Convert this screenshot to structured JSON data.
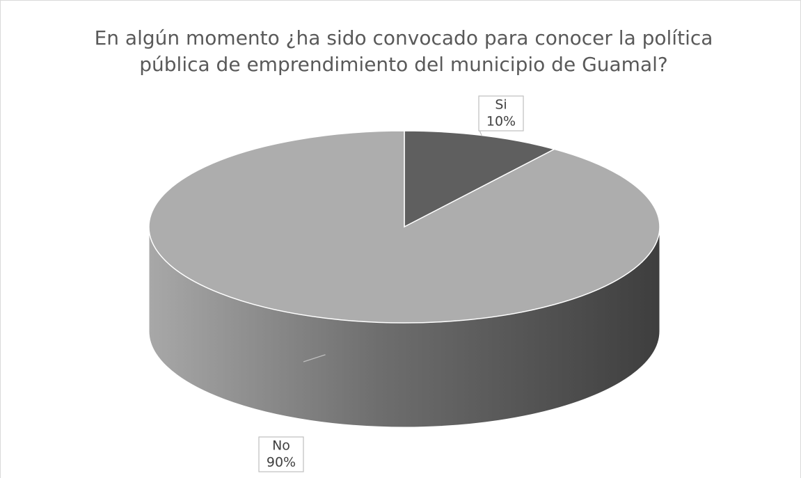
{
  "chart_data": {
    "type": "pie",
    "title": "En algún momento ¿ha sido convocado para conocer la política pública de emprendimiento del municipio de Guamal?",
    "categories": [
      "Si",
      "No"
    ],
    "values": [
      10,
      90
    ],
    "value_labels": [
      "10%",
      "90%"
    ],
    "colors": [
      "#5f5f5f",
      "#adadad"
    ]
  }
}
